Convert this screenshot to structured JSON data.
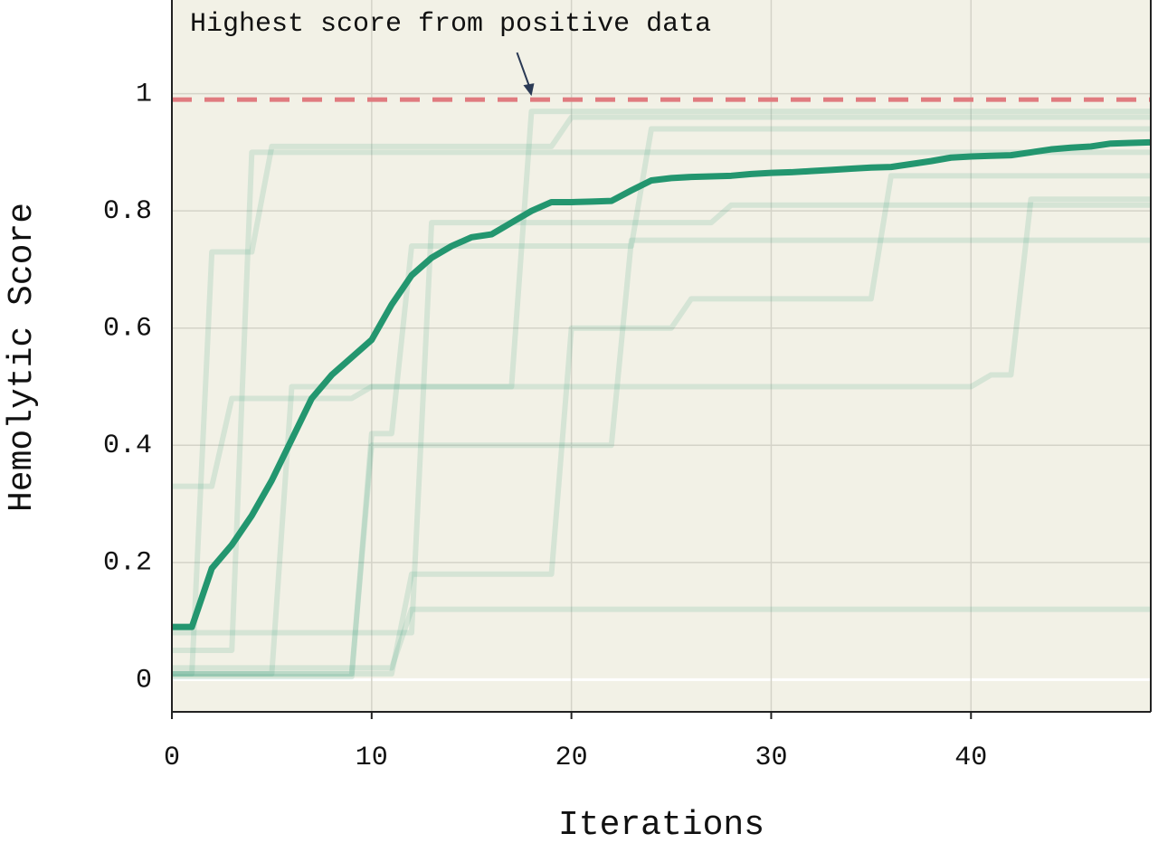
{
  "chart_data": {
    "type": "line",
    "x_label": "Iterations",
    "y_label": "Hemolytic Score",
    "x": [
      0,
      1,
      2,
      3,
      4,
      5,
      6,
      7,
      8,
      9,
      10,
      11,
      12,
      13,
      14,
      15,
      16,
      17,
      18,
      19,
      20,
      21,
      22,
      23,
      24,
      25,
      26,
      27,
      28,
      29,
      30,
      31,
      32,
      33,
      34,
      35,
      36,
      37,
      38,
      39,
      40,
      41,
      42,
      43,
      44,
      45,
      46,
      47,
      48,
      49
    ],
    "xlim": [
      0,
      49
    ],
    "xticks": [
      0,
      10,
      20,
      30,
      40
    ],
    "ylim": [
      -0.055,
      1.16
    ],
    "yticks": [
      0,
      0.2,
      0.4,
      0.6,
      0.8,
      1
    ],
    "grid": true,
    "reference_line": {
      "value": 0.99,
      "color": "#e07b7f"
    },
    "annotation": {
      "text": "Highest score from positive data",
      "x": 18,
      "y": 0.99
    },
    "series": [
      {
        "color": "#2e9d7a",
        "values": [
          0.01,
          0.01,
          0.73,
          0.73,
          0.73,
          0.91,
          0.91,
          0.91,
          0.91,
          0.91,
          0.91,
          0.91,
          0.91,
          0.91,
          0.91,
          0.91,
          0.91,
          0.91,
          0.91,
          0.91,
          0.96,
          0.96,
          0.96,
          0.96,
          0.96,
          0.96,
          0.96,
          0.96,
          0.96,
          0.96,
          0.96,
          0.96,
          0.96,
          0.96,
          0.96,
          0.96,
          0.96,
          0.96,
          0.96,
          0.96,
          0.96,
          0.96,
          0.96,
          0.96,
          0.96,
          0.96,
          0.96,
          0.96,
          0.96,
          0.96
        ]
      },
      {
        "color": "#2e9d7a",
        "values": [
          0.005,
          0.005,
          0.005,
          0.005,
          0.005,
          0.005,
          0.005,
          0.005,
          0.005,
          0.005,
          0.42,
          0.42,
          0.74,
          0.74,
          0.74,
          0.74,
          0.74,
          0.74,
          0.74,
          0.74,
          0.74,
          0.74,
          0.74,
          0.74,
          0.94,
          0.94,
          0.94,
          0.94,
          0.94,
          0.94,
          0.94,
          0.94,
          0.94,
          0.94,
          0.94,
          0.94,
          0.94,
          0.94,
          0.94,
          0.94,
          0.94,
          0.94,
          0.94,
          0.94,
          0.94,
          0.94,
          0.94,
          0.94,
          0.94,
          0.94
        ]
      },
      {
        "color": "#2e9d7a",
        "values": [
          0.02,
          0.02,
          0.02,
          0.02,
          0.02,
          0.02,
          0.02,
          0.02,
          0.02,
          0.02,
          0.02,
          0.02,
          0.12,
          0.12,
          0.12,
          0.12,
          0.12,
          0.12,
          0.12,
          0.12,
          0.12,
          0.12,
          0.12,
          0.12,
          0.12,
          0.12,
          0.12,
          0.12,
          0.12,
          0.12,
          0.12,
          0.12,
          0.12,
          0.12,
          0.12,
          0.12,
          0.12,
          0.12,
          0.12,
          0.12,
          0.12,
          0.12,
          0.12,
          0.12,
          0.12,
          0.12,
          0.12,
          0.12,
          0.12,
          0.12
        ]
      },
      {
        "color": "#2e9d7a",
        "values": [
          0.01,
          0.01,
          0.01,
          0.01,
          0.01,
          0.01,
          0.01,
          0.01,
          0.01,
          0.01,
          0.01,
          0.01,
          0.18,
          0.18,
          0.18,
          0.18,
          0.18,
          0.18,
          0.18,
          0.18,
          0.6,
          0.6,
          0.6,
          0.6,
          0.6,
          0.6,
          0.65,
          0.65,
          0.65,
          0.65,
          0.65,
          0.65,
          0.65,
          0.65,
          0.65,
          0.65,
          0.86,
          0.86,
          0.86,
          0.86,
          0.86,
          0.86,
          0.86,
          0.86,
          0.86,
          0.86,
          0.86,
          0.86,
          0.86,
          0.86
        ]
      },
      {
        "color": "#2e9d7a",
        "values": [
          0.01,
          0.01,
          0.01,
          0.01,
          0.01,
          0.01,
          0.5,
          0.5,
          0.5,
          0.5,
          0.5,
          0.5,
          0.5,
          0.5,
          0.5,
          0.5,
          0.5,
          0.5,
          0.97,
          0.97,
          0.97,
          0.97,
          0.97,
          0.97,
          0.97,
          0.97,
          0.97,
          0.97,
          0.97,
          0.97,
          0.97,
          0.97,
          0.97,
          0.97,
          0.97,
          0.97,
          0.97,
          0.97,
          0.97,
          0.97,
          0.97,
          0.97,
          0.97,
          0.97,
          0.97,
          0.97,
          0.97,
          0.97,
          0.97,
          0.97
        ]
      },
      {
        "color": "#2e9d7a",
        "values": [
          0.33,
          0.33,
          0.33,
          0.48,
          0.48,
          0.48,
          0.48,
          0.48,
          0.48,
          0.48,
          0.5,
          0.5,
          0.5,
          0.5,
          0.5,
          0.5,
          0.5,
          0.5,
          0.5,
          0.5,
          0.5,
          0.5,
          0.5,
          0.5,
          0.5,
          0.5,
          0.5,
          0.5,
          0.5,
          0.5,
          0.5,
          0.5,
          0.5,
          0.5,
          0.5,
          0.5,
          0.5,
          0.5,
          0.5,
          0.5,
          0.5,
          0.52,
          0.52,
          0.82,
          0.82,
          0.82,
          0.82,
          0.82,
          0.82,
          0.82
        ]
      },
      {
        "color": "#2e9d7a",
        "values": [
          0.01,
          0.01,
          0.01,
          0.01,
          0.01,
          0.01,
          0.01,
          0.01,
          0.01,
          0.01,
          0.4,
          0.4,
          0.4,
          0.4,
          0.4,
          0.4,
          0.4,
          0.4,
          0.4,
          0.4,
          0.4,
          0.4,
          0.4,
          0.75,
          0.75,
          0.75,
          0.75,
          0.75,
          0.75,
          0.75,
          0.75,
          0.75,
          0.75,
          0.75,
          0.75,
          0.75,
          0.75,
          0.75,
          0.75,
          0.75,
          0.75,
          0.75,
          0.75,
          0.75,
          0.75,
          0.75,
          0.75,
          0.75,
          0.75,
          0.75
        ]
      },
      {
        "color": "#2e9d7a",
        "values": [
          0.05,
          0.05,
          0.05,
          0.05,
          0.9,
          0.9,
          0.9,
          0.9,
          0.9,
          0.9,
          0.9,
          0.9,
          0.9,
          0.9,
          0.9,
          0.9,
          0.9,
          0.9,
          0.9,
          0.9,
          0.9,
          0.9,
          0.9,
          0.9,
          0.9,
          0.9,
          0.9,
          0.9,
          0.9,
          0.9,
          0.9,
          0.9,
          0.9,
          0.9,
          0.9,
          0.9,
          0.9,
          0.9,
          0.9,
          0.9,
          0.9,
          0.9,
          0.9,
          0.9,
          0.9,
          0.9,
          0.9,
          0.9,
          0.9,
          0.9
        ]
      },
      {
        "color": "#2e9d7a",
        "values": [
          0.08,
          0.08,
          0.08,
          0.08,
          0.08,
          0.08,
          0.08,
          0.08,
          0.08,
          0.08,
          0.08,
          0.08,
          0.08,
          0.78,
          0.78,
          0.78,
          0.78,
          0.78,
          0.78,
          0.78,
          0.78,
          0.78,
          0.78,
          0.78,
          0.78,
          0.78,
          0.78,
          0.78,
          0.81,
          0.81,
          0.81,
          0.81,
          0.81,
          0.81,
          0.81,
          0.81,
          0.81,
          0.81,
          0.81,
          0.81,
          0.81,
          0.81,
          0.81,
          0.81,
          0.81,
          0.81,
          0.81,
          0.81,
          0.81,
          0.81
        ]
      },
      {
        "color": "#23966f",
        "values": [
          0.09,
          0.09,
          0.19,
          0.23,
          0.28,
          0.34,
          0.41,
          0.48,
          0.52,
          0.55,
          0.58,
          0.64,
          0.69,
          0.72,
          0.74,
          0.755,
          0.76,
          0.78,
          0.8,
          0.815,
          0.815,
          0.816,
          0.817,
          0.835,
          0.852,
          0.856,
          0.858,
          0.859,
          0.86,
          0.863,
          0.865,
          0.866,
          0.868,
          0.87,
          0.872,
          0.874,
          0.875,
          0.88,
          0.885,
          0.891,
          0.893,
          0.894,
          0.895,
          0.9,
          0.905,
          0.908,
          0.91,
          0.915,
          0.916,
          0.917
        ]
      }
    ]
  }
}
